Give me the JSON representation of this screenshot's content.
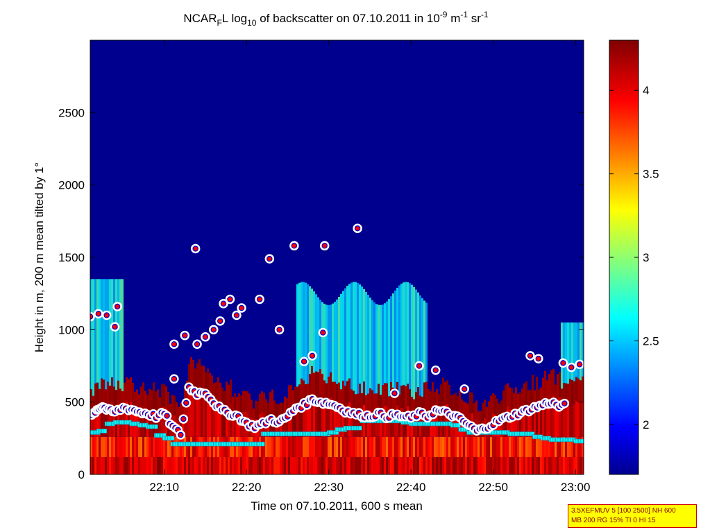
{
  "chart_data": {
    "type": "heatmap",
    "title": {
      "base": "NCAR",
      "base_sub": "F",
      "mid": "L log",
      "mid_sub": "10",
      "rest": " of backscatter on 07.10.2011 in 10",
      "sup1": "-9",
      "unit1": " m",
      "sup2": "-1",
      "unit2": " sr",
      "sup3": "-1"
    },
    "xlabel": "Time on 07.10.2011, 600 s mean",
    "ylabel": "Height in m, 200 m mean tilted by 1°",
    "x_ticks": [
      "22:10",
      "22:20",
      "22:30",
      "22:40",
      "22:50",
      "23:00"
    ],
    "x_tick_minutes": [
      10,
      20,
      30,
      40,
      50,
      60
    ],
    "xlim_minutes_after_22_00": [
      1,
      61
    ],
    "y_ticks": [
      0,
      500,
      1000,
      1500,
      2000,
      2500
    ],
    "ylim": [
      0,
      3000
    ],
    "colorbar": {
      "ticks": [
        2,
        2.5,
        3,
        3.5,
        4
      ],
      "labels": [
        "2",
        "2.5",
        "3",
        "3.5",
        "4"
      ],
      "range": [
        1.7,
        4.3
      ],
      "colormap": "jet"
    },
    "series": [
      {
        "marker": "red circles with white outline",
        "description_points_minutes_height": [
          [
            1.2,
            410
          ],
          [
            1.8,
            450
          ],
          [
            2.5,
            470
          ],
          [
            3.2,
            440
          ],
          [
            4,
            430
          ],
          [
            5,
            460
          ],
          [
            6,
            450
          ],
          [
            7,
            430
          ],
          [
            8,
            420
          ],
          [
            9,
            400
          ],
          [
            10,
            420
          ],
          [
            11,
            330
          ],
          [
            12,
            280
          ],
          [
            13,
            600
          ],
          [
            14,
            560
          ],
          [
            15,
            570
          ],
          [
            16,
            500
          ],
          [
            17,
            440
          ],
          [
            18,
            420
          ],
          [
            19,
            400
          ],
          [
            20,
            350
          ],
          [
            21,
            330
          ],
          [
            22,
            350
          ],
          [
            23,
            380
          ],
          [
            24,
            360
          ],
          [
            25,
            400
          ],
          [
            26,
            460
          ],
          [
            27,
            480
          ],
          [
            28,
            520
          ],
          [
            29,
            500
          ],
          [
            30,
            490
          ],
          [
            31,
            470
          ],
          [
            32,
            440
          ],
          [
            33,
            420
          ],
          [
            34,
            410
          ],
          [
            35,
            400
          ],
          [
            36,
            420
          ],
          [
            37,
            400
          ],
          [
            38,
            410
          ],
          [
            39,
            400
          ],
          [
            40,
            390
          ],
          [
            41,
            420
          ],
          [
            42,
            400
          ],
          [
            43,
            440
          ],
          [
            44,
            430
          ],
          [
            45,
            410
          ],
          [
            46,
            380
          ],
          [
            47,
            340
          ],
          [
            48,
            300
          ],
          [
            49,
            320
          ],
          [
            50,
            350
          ],
          [
            51,
            380
          ],
          [
            52,
            400
          ],
          [
            53,
            420
          ],
          [
            54,
            440
          ],
          [
            55,
            460
          ],
          [
            56,
            480
          ],
          [
            57,
            500
          ],
          [
            58,
            470
          ],
          [
            59,
            480
          ]
        ],
        "upper_points_minutes_height": [
          [
            1,
            1090
          ],
          [
            2,
            1110
          ],
          [
            3,
            1100
          ],
          [
            4,
            1020
          ],
          [
            4.3,
            1160
          ],
          [
            11.2,
            900
          ],
          [
            11.2,
            660
          ],
          [
            12.5,
            960
          ],
          [
            13.8,
            1560
          ],
          [
            14,
            900
          ],
          [
            15,
            950
          ],
          [
            16,
            1000
          ],
          [
            16.8,
            1060
          ],
          [
            17.2,
            1180
          ],
          [
            18,
            1210
          ],
          [
            18.8,
            1100
          ],
          [
            19.4,
            1150
          ],
          [
            21.6,
            1210
          ],
          [
            22.8,
            1490
          ],
          [
            24,
            1000
          ],
          [
            25.8,
            1580
          ],
          [
            27,
            780
          ],
          [
            28,
            820
          ],
          [
            29.3,
            980
          ],
          [
            29.5,
            1580
          ],
          [
            33.5,
            1700
          ],
          [
            38,
            560
          ],
          [
            41,
            750
          ],
          [
            43,
            720
          ],
          [
            46.5,
            590
          ],
          [
            54.5,
            820
          ],
          [
            55.5,
            800
          ],
          [
            58.5,
            770
          ],
          [
            59.5,
            740
          ],
          [
            60.5,
            760
          ]
        ]
      },
      {
        "marker": "cyan squares",
        "description_points_minutes_height": [
          [
            1,
            290
          ],
          [
            2,
            300
          ],
          [
            3,
            350
          ],
          [
            4,
            360
          ],
          [
            5,
            360
          ],
          [
            6,
            350
          ],
          [
            7,
            340
          ],
          [
            8,
            330
          ],
          [
            9,
            270
          ],
          [
            10,
            250
          ],
          [
            11,
            210
          ],
          [
            12,
            210
          ],
          [
            13,
            210
          ],
          [
            14,
            210
          ],
          [
            15,
            210
          ],
          [
            16,
            210
          ],
          [
            17,
            210
          ],
          [
            18,
            210
          ],
          [
            19,
            210
          ],
          [
            20,
            210
          ],
          [
            21,
            210
          ],
          [
            22,
            280
          ],
          [
            23,
            280
          ],
          [
            24,
            280
          ],
          [
            25,
            280
          ],
          [
            26,
            280
          ],
          [
            27,
            280
          ],
          [
            28,
            280
          ],
          [
            29,
            280
          ],
          [
            30,
            290
          ],
          [
            31,
            310
          ],
          [
            32,
            320
          ],
          [
            33,
            320
          ],
          [
            34,
            370
          ],
          [
            35,
            370
          ],
          [
            36,
            370
          ],
          [
            37,
            370
          ],
          [
            38,
            370
          ],
          [
            39,
            360
          ],
          [
            40,
            350
          ],
          [
            41,
            350
          ],
          [
            42,
            350
          ],
          [
            43,
            350
          ],
          [
            44,
            350
          ],
          [
            45,
            340
          ],
          [
            46,
            310
          ],
          [
            47,
            290
          ],
          [
            48,
            290
          ],
          [
            49,
            290
          ],
          [
            50,
            290
          ],
          [
            51,
            290
          ],
          [
            52,
            280
          ],
          [
            53,
            280
          ],
          [
            54,
            280
          ],
          [
            55,
            260
          ],
          [
            56,
            250
          ],
          [
            57,
            240
          ],
          [
            58,
            240
          ],
          [
            59,
            240
          ],
          [
            60,
            230
          ],
          [
            61,
            230
          ]
        ]
      }
    ]
  },
  "stamp": {
    "line1": "3.5XEFMUV 5 [100 2500] NH 600",
    "line2": "MB 200 RG 15% TI 0 HI 15"
  }
}
